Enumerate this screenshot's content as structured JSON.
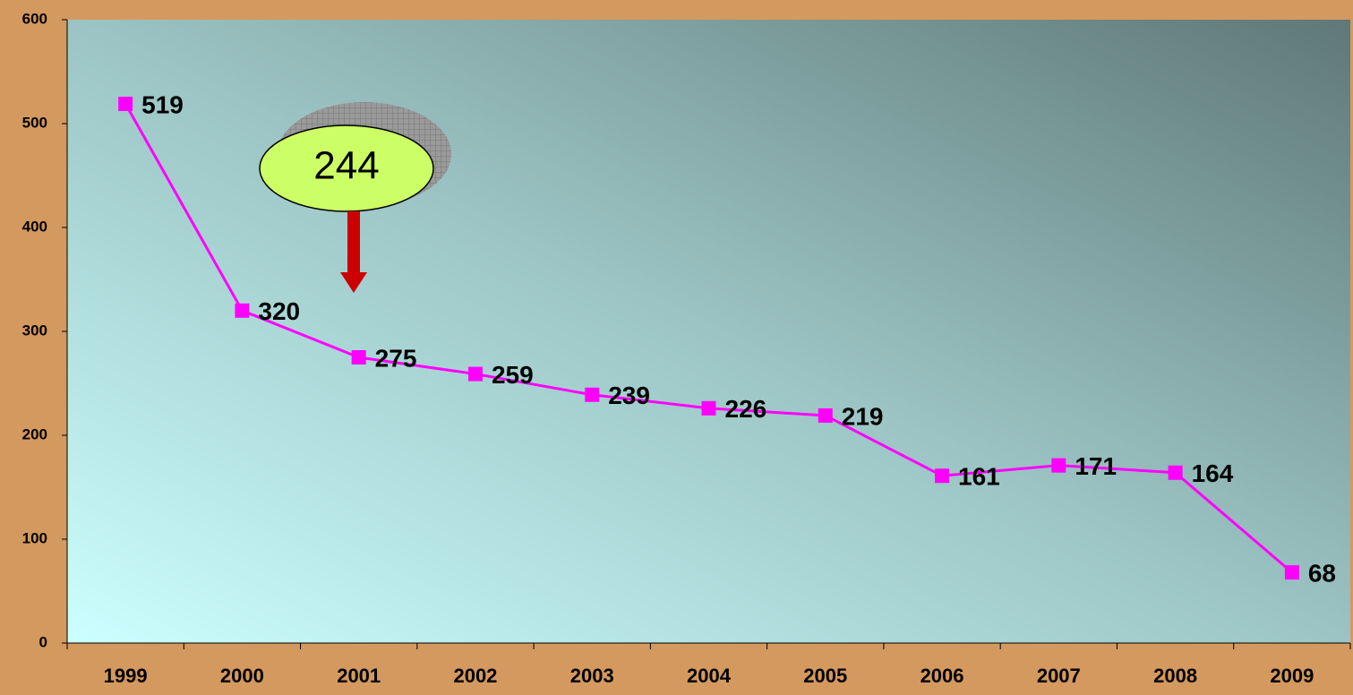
{
  "chart_data": {
    "type": "line",
    "categories": [
      "1999",
      "2000",
      "2001",
      "2002",
      "2003",
      "2004",
      "2005",
      "2006",
      "2007",
      "2008",
      "2009"
    ],
    "series": [
      {
        "color": "#ff00ff",
        "values": [
          519,
          320,
          275,
          259,
          239,
          226,
          219,
          161,
          171,
          164,
          68
        ]
      }
    ],
    "ylim": [
      0,
      600
    ],
    "yticks": [
      0,
      100,
      200,
      300,
      400,
      500,
      600
    ],
    "annotations": [
      {
        "text": "244"
      }
    ]
  }
}
